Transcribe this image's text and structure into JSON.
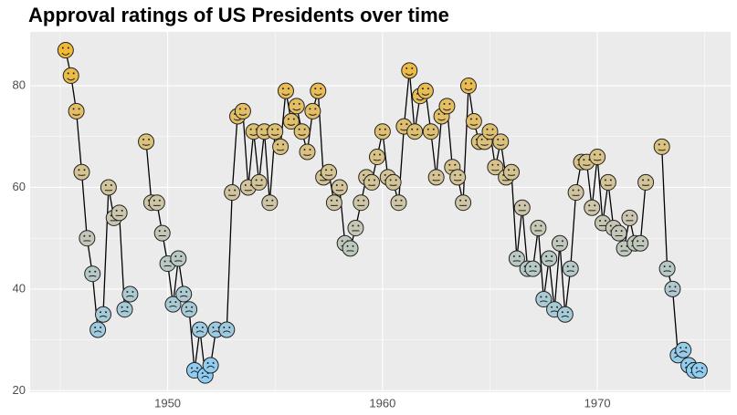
{
  "chart_data": {
    "type": "line",
    "title": "Approval ratings of US Presidents over time",
    "x": [
      1945,
      1945.25,
      1945.5,
      1945.75,
      1946,
      1946.25,
      1946.5,
      1946.75,
      1947,
      1947.25,
      1947.5,
      1947.75,
      1948,
      1948.25,
      1948.5,
      1948.75,
      1949,
      1949.25,
      1949.5,
      1949.75,
      1950,
      1950.25,
      1950.5,
      1950.75,
      1951,
      1951.25,
      1951.5,
      1951.75,
      1952,
      1952.25,
      1952.5,
      1952.75,
      1953,
      1953.25,
      1953.5,
      1953.75,
      1954,
      1954.25,
      1954.5,
      1954.75,
      1955,
      1955.25,
      1955.5,
      1955.75,
      1956,
      1956.25,
      1956.5,
      1956.75,
      1957,
      1957.25,
      1957.5,
      1957.75,
      1958,
      1958.25,
      1958.5,
      1958.75,
      1959,
      1959.25,
      1959.5,
      1959.75,
      1960,
      1960.25,
      1960.5,
      1960.75,
      1961,
      1961.25,
      1961.5,
      1961.75,
      1962,
      1962.25,
      1962.5,
      1962.75,
      1963,
      1963.25,
      1963.5,
      1963.75,
      1964,
      1964.25,
      1964.5,
      1964.75,
      1965,
      1965.25,
      1965.5,
      1965.75,
      1966,
      1966.25,
      1966.5,
      1966.75,
      1967,
      1967.25,
      1967.5,
      1967.75,
      1968,
      1968.25,
      1968.5,
      1968.75,
      1969,
      1969.25,
      1969.5,
      1969.75,
      1970,
      1970.25,
      1970.5,
      1970.75,
      1971,
      1971.25,
      1971.5,
      1971.75,
      1972,
      1972.25,
      1972.5,
      1972.75,
      1973,
      1973.25,
      1973.5,
      1973.75,
      1974,
      1974.25,
      1974.5,
      1974.75
    ],
    "values": [
      null,
      87,
      82,
      75,
      63,
      50,
      43,
      32,
      35,
      60,
      54,
      55,
      36,
      39,
      null,
      null,
      69,
      57,
      57,
      51,
      45,
      37,
      46,
      39,
      36,
      24,
      32,
      23,
      25,
      32,
      null,
      32,
      59,
      74,
      75,
      60,
      71,
      61,
      71,
      57,
      71,
      68,
      79,
      73,
      76,
      71,
      67,
      75,
      79,
      62,
      63,
      57,
      60,
      49,
      48,
      52,
      57,
      62,
      61,
      66,
      71,
      62,
      61,
      57,
      72,
      83,
      71,
      78,
      79,
      71,
      62,
      74,
      76,
      64,
      62,
      57,
      80,
      73,
      69,
      69,
      71,
      64,
      69,
      62,
      63,
      46,
      56,
      44,
      44,
      52,
      38,
      46,
      36,
      49,
      35,
      44,
      59,
      65,
      65,
      56,
      66,
      53,
      61,
      52,
      51,
      48,
      54,
      49,
      49,
      61,
      null,
      null,
      68,
      44,
      40,
      27,
      28,
      25,
      24,
      24
    ],
    "line_color": "#000000",
    "color_low": "#87CEFA",
    "color_mid": "#CCC6AE",
    "color_high": "#F5B829",
    "xlim": [
      1943.6,
      1976.2
    ],
    "xticks": [
      1950,
      1960,
      1970
    ],
    "ylim": [
      19.7,
      90.6
    ],
    "yticks": [
      20,
      40,
      60,
      80
    ],
    "grid": true
  }
}
